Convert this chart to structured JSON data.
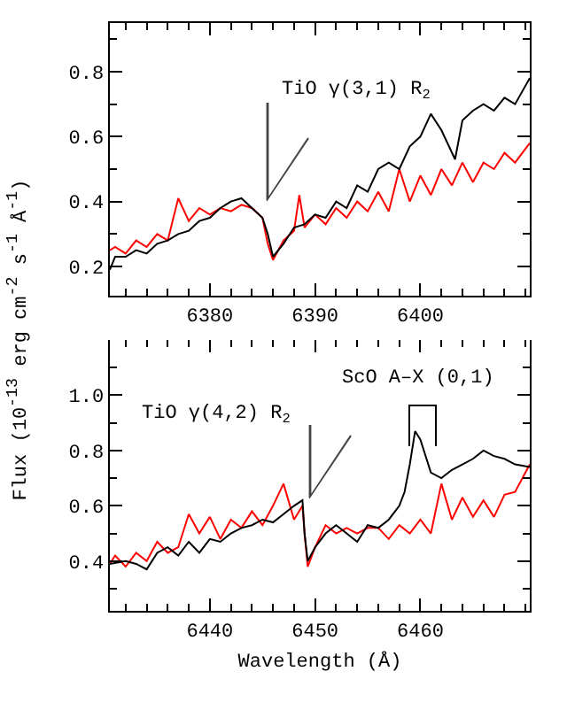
{
  "chart_data": [
    {
      "type": "line",
      "ylabel": "Flux (10$^{-13}$ erg cm$^{-2}$ s$^{-1}$ Å$^{-1}$)",
      "xlim": [
        6370.5,
        6410.4
      ],
      "xticks": [
        6380,
        6390,
        6400
      ],
      "ylim": [
        0.11,
        0.95
      ],
      "yticks": [
        0.2,
        0.4,
        0.6,
        0.8
      ],
      "grid": false,
      "annotations": [
        "TiO γ(3,1) R$_{2}$"
      ],
      "series": [
        {
          "color": "#ff0000",
          "x": [
            6370.5,
            6371,
            6372,
            6373,
            6374,
            6375,
            6376,
            6377,
            6378,
            6379,
            6380,
            6381,
            6382,
            6383,
            6384,
            6385,
            6385.5,
            6386,
            6387,
            6388,
            6388.5,
            6389,
            6390,
            6391,
            6392,
            6393,
            6394,
            6395,
            6396,
            6397,
            6398,
            6399,
            6400,
            6401,
            6402,
            6403,
            6404,
            6405,
            6406,
            6407,
            6408,
            6409,
            6410.4
          ],
          "values": [
            0.25,
            0.26,
            0.24,
            0.28,
            0.26,
            0.3,
            0.28,
            0.41,
            0.34,
            0.38,
            0.36,
            0.38,
            0.37,
            0.39,
            0.38,
            0.35,
            0.27,
            0.22,
            0.28,
            0.31,
            0.42,
            0.32,
            0.36,
            0.33,
            0.38,
            0.35,
            0.4,
            0.37,
            0.43,
            0.37,
            0.5,
            0.4,
            0.48,
            0.42,
            0.5,
            0.45,
            0.52,
            0.46,
            0.52,
            0.5,
            0.55,
            0.52,
            0.58
          ]
        },
        {
          "color": "#000000",
          "x": [
            6370.5,
            6371,
            6372,
            6373,
            6374,
            6375,
            6376,
            6377,
            6378,
            6379,
            6380,
            6381,
            6382,
            6383,
            6384,
            6385,
            6385.5,
            6386,
            6387,
            6388,
            6389,
            6390,
            6391,
            6392,
            6393,
            6394,
            6395,
            6396,
            6397,
            6398,
            6399,
            6400,
            6401,
            6402,
            6403.3,
            6404,
            6405,
            6406,
            6407,
            6408,
            6409,
            6410.4
          ],
          "values": [
            0.19,
            0.23,
            0.23,
            0.25,
            0.24,
            0.27,
            0.28,
            0.3,
            0.31,
            0.34,
            0.35,
            0.38,
            0.4,
            0.41,
            0.38,
            0.35,
            0.3,
            0.23,
            0.27,
            0.32,
            0.33,
            0.36,
            0.35,
            0.4,
            0.38,
            0.45,
            0.43,
            0.5,
            0.52,
            0.5,
            0.57,
            0.6,
            0.67,
            0.62,
            0.53,
            0.65,
            0.68,
            0.7,
            0.68,
            0.72,
            0.7,
            0.78
          ]
        }
      ]
    },
    {
      "type": "line",
      "xlabel": "Wavelength (Å)",
      "xlim": [
        6430.5,
        6470.4
      ],
      "xticks": [
        6440,
        6450,
        6460
      ],
      "ylim": [
        0.22,
        1.2
      ],
      "yticks": [
        0.4,
        0.6,
        0.8,
        {
          "value": 1,
          "label": "1.0"
        }
      ],
      "grid": false,
      "annotations": [
        "TiO γ(4,2) R$_{2}$",
        "ScO A–X (0,1)"
      ],
      "series": [
        {
          "color": "#ff0000",
          "x": [
            6430.5,
            6431,
            6432,
            6433,
            6434,
            6435,
            6436,
            6437,
            6438,
            6439,
            6440,
            6441,
            6442,
            6443,
            6444,
            6445,
            6446,
            6447,
            6448,
            6448.8,
            6449,
            6449.3,
            6450,
            6451,
            6452,
            6453,
            6454,
            6455,
            6456,
            6457,
            6458,
            6459,
            6460,
            6461,
            6462,
            6463,
            6464,
            6465,
            6466,
            6467,
            6468,
            6469,
            6470.4
          ],
          "values": [
            0.39,
            0.42,
            0.38,
            0.43,
            0.4,
            0.47,
            0.43,
            0.45,
            0.57,
            0.5,
            0.56,
            0.48,
            0.55,
            0.52,
            0.58,
            0.53,
            0.6,
            0.68,
            0.55,
            0.6,
            0.5,
            0.38,
            0.45,
            0.53,
            0.5,
            0.52,
            0.5,
            0.52,
            0.52,
            0.48,
            0.53,
            0.5,
            0.55,
            0.5,
            0.68,
            0.55,
            0.63,
            0.56,
            0.62,
            0.56,
            0.64,
            0.65,
            0.75
          ]
        },
        {
          "color": "#000000",
          "x": [
            6430.5,
            6432,
            6433,
            6434,
            6435,
            6436,
            6437,
            6438,
            6439,
            6440,
            6441,
            6442,
            6443,
            6444,
            6445,
            6446,
            6447,
            6448,
            6448.8,
            6449,
            6449.3,
            6450,
            6451,
            6452,
            6453,
            6454,
            6455,
            6456,
            6457,
            6458,
            6458.5,
            6459,
            6459.5,
            6460,
            6461,
            6462,
            6463,
            6464,
            6465,
            6466,
            6467,
            6468,
            6469,
            6470.4
          ],
          "values": [
            0.39,
            0.4,
            0.39,
            0.37,
            0.43,
            0.45,
            0.42,
            0.47,
            0.43,
            0.48,
            0.47,
            0.5,
            0.52,
            0.53,
            0.55,
            0.54,
            0.57,
            0.6,
            0.62,
            0.5,
            0.4,
            0.45,
            0.5,
            0.53,
            0.5,
            0.47,
            0.53,
            0.52,
            0.55,
            0.6,
            0.65,
            0.75,
            0.87,
            0.84,
            0.72,
            0.7,
            0.73,
            0.75,
            0.77,
            0.8,
            0.78,
            0.77,
            0.75,
            0.74
          ]
        }
      ]
    }
  ]
}
